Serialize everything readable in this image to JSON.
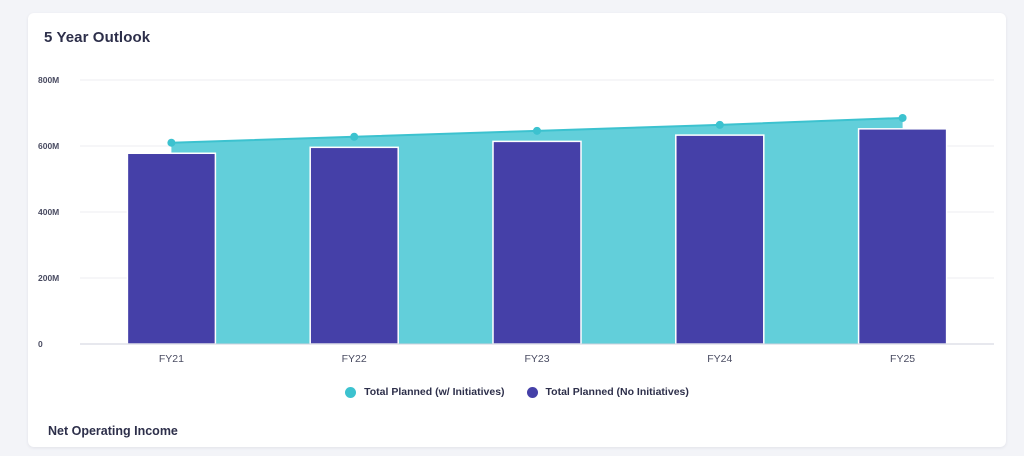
{
  "card": {
    "title": "5 Year Outlook",
    "next_section_title": "Net Operating Income"
  },
  "colors": {
    "teal": "#3cc2cf",
    "teal_fill": "#62cfda",
    "indigo": "#4540a8"
  },
  "chart_data": {
    "type": "bar",
    "categories": [
      "FY21",
      "FY22",
      "FY23",
      "FY24",
      "FY25"
    ],
    "ylim": [
      0,
      800
    ],
    "yticks": [
      0,
      200,
      400,
      600,
      800
    ],
    "ytick_labels": [
      "0",
      "200M",
      "400M",
      "600M",
      "800M"
    ],
    "grid": true,
    "legend_position": "bottom",
    "series": [
      {
        "name": "Total Planned (w/ Initiatives)",
        "type": "area-line",
        "values": [
          610,
          628,
          646,
          664,
          685
        ]
      },
      {
        "name": "Total Planned (No Initiatives)",
        "type": "bar",
        "values": [
          578,
          596,
          614,
          633,
          652
        ]
      }
    ]
  }
}
